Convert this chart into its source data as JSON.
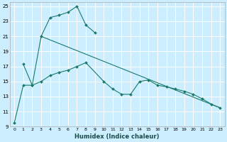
{
  "xlabel": "Humidex (Indice chaleur)",
  "background_color": "#cceeff",
  "grid_color": "#ffffff",
  "line_color": "#1a7a6a",
  "xlim": [
    -0.5,
    23.5
  ],
  "ylim": [
    9,
    25.5
  ],
  "xticks": [
    0,
    1,
    2,
    3,
    4,
    5,
    6,
    7,
    8,
    9,
    10,
    11,
    12,
    13,
    14,
    15,
    16,
    17,
    18,
    19,
    20,
    21,
    22,
    23
  ],
  "yticks": [
    9,
    11,
    13,
    15,
    17,
    19,
    21,
    23,
    25
  ],
  "s1x": [
    0,
    1,
    2,
    3,
    4,
    5,
    6,
    7,
    8,
    9
  ],
  "s1y": [
    9.5,
    14.5,
    14.5,
    21.0,
    23.5,
    23.8,
    24.2,
    25.0,
    22.5,
    21.5
  ],
  "s2x": [
    1,
    2,
    3,
    4,
    5,
    6,
    7,
    8,
    10,
    11,
    12,
    13,
    14,
    15,
    16,
    17,
    18,
    19,
    20,
    21,
    22,
    23
  ],
  "s2y": [
    17.3,
    14.5,
    15.0,
    15.8,
    16.2,
    16.5,
    17.0,
    17.5,
    15.0,
    14.0,
    13.3,
    13.3,
    15.0,
    15.2,
    14.5,
    14.3,
    14.0,
    13.7,
    13.3,
    12.7,
    12.0,
    11.5
  ],
  "s3x": [
    3,
    23
  ],
  "s3y": [
    21.0,
    11.5
  ]
}
